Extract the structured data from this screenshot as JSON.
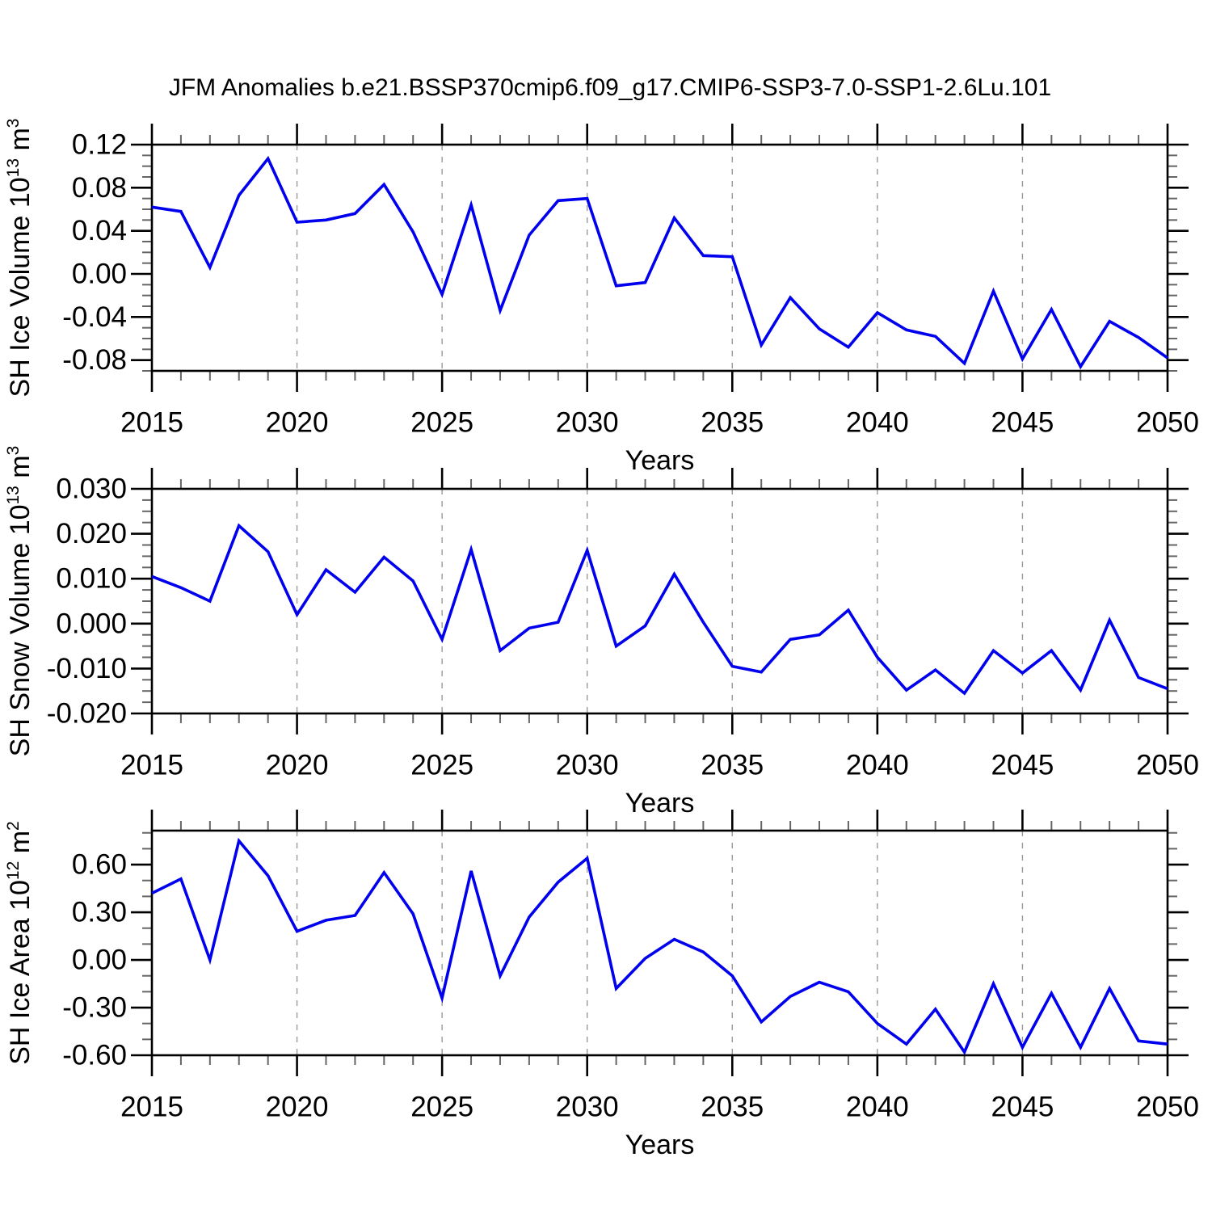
{
  "title": "JFM Anomalies b.e21.BSSP370cmip6.f09_g17.CMIP6-SSP3-7.0-SSP1-2.6Lu.101",
  "colors": {
    "line": "#0000EE",
    "axis": "#000000",
    "minor_tick": "#666666",
    "gridline": "#999999",
    "background": "#FFFFFF",
    "text": "#000000"
  },
  "chart_data": [
    {
      "id": "sh-ice-volume",
      "type": "line",
      "xlabel": "Years",
      "ylabel_segments": [
        {
          "t": "SH Ice Volume 10",
          "sup": false
        },
        {
          "t": "13",
          "sup": true
        },
        {
          "t": " m",
          "sup": false
        },
        {
          "t": "3",
          "sup": true
        }
      ],
      "x": [
        2015,
        2016,
        2017,
        2018,
        2019,
        2020,
        2021,
        2022,
        2023,
        2024,
        2025,
        2026,
        2027,
        2028,
        2029,
        2030,
        2031,
        2032,
        2033,
        2034,
        2035,
        2036,
        2037,
        2038,
        2039,
        2040,
        2041,
        2042,
        2043,
        2044,
        2045,
        2046,
        2047,
        2048,
        2049,
        2050
      ],
      "values": [
        0.062,
        0.058,
        0.006,
        0.073,
        0.107,
        0.048,
        0.05,
        0.056,
        0.083,
        0.039,
        -0.019,
        0.064,
        -0.034,
        0.036,
        0.068,
        0.07,
        -0.011,
        -0.008,
        0.052,
        0.017,
        0.016,
        -0.066,
        -0.022,
        -0.051,
        -0.068,
        -0.036,
        -0.052,
        -0.058,
        -0.083,
        -0.016,
        -0.079,
        -0.033,
        -0.086,
        -0.044,
        -0.059,
        -0.078
      ],
      "ylim": [
        -0.09,
        0.12
      ],
      "yticks": [
        {
          "v": 0.12,
          "label": "0.12"
        },
        {
          "v": 0.08,
          "label": "0.08"
        },
        {
          "v": 0.04,
          "label": "0.04"
        },
        {
          "v": 0.0,
          "label": "0.00"
        },
        {
          "v": -0.04,
          "label": "-0.04"
        },
        {
          "v": -0.08,
          "label": "-0.08"
        }
      ],
      "yminor_step": 0.01,
      "xticks": [
        2015,
        2020,
        2025,
        2030,
        2035,
        2040,
        2045,
        2050
      ],
      "xminor_step": 1,
      "grid_years": [
        2020,
        2025,
        2030,
        2035,
        2040,
        2045
      ]
    },
    {
      "id": "sh-snow-volume",
      "type": "line",
      "xlabel": "Years",
      "ylabel_segments": [
        {
          "t": "SH Snow Volume 10",
          "sup": false
        },
        {
          "t": "13",
          "sup": true
        },
        {
          "t": " m",
          "sup": false
        },
        {
          "t": "3",
          "sup": true
        }
      ],
      "x": [
        2015,
        2016,
        2017,
        2018,
        2019,
        2020,
        2021,
        2022,
        2023,
        2024,
        2025,
        2026,
        2027,
        2028,
        2029,
        2030,
        2031,
        2032,
        2033,
        2034,
        2035,
        2036,
        2037,
        2038,
        2039,
        2040,
        2041,
        2042,
        2043,
        2044,
        2045,
        2046,
        2047,
        2048,
        2049,
        2050
      ],
      "values": [
        0.0105,
        0.008,
        0.005,
        0.0218,
        0.016,
        0.002,
        0.012,
        0.007,
        0.0148,
        0.0095,
        -0.0035,
        0.0165,
        -0.006,
        -0.001,
        0.0003,
        0.0163,
        -0.005,
        -0.0005,
        0.011,
        0.0003,
        -0.0095,
        -0.0108,
        -0.0035,
        -0.0025,
        0.003,
        -0.0075,
        -0.0148,
        -0.0103,
        -0.0155,
        -0.006,
        -0.011,
        -0.006,
        -0.0148,
        0.0008,
        -0.012,
        -0.0145
      ],
      "ylim": [
        -0.02,
        0.03
      ],
      "yticks": [
        {
          "v": 0.03,
          "label": "0.030"
        },
        {
          "v": 0.02,
          "label": "0.020"
        },
        {
          "v": 0.01,
          "label": "0.010"
        },
        {
          "v": 0.0,
          "label": "0.000"
        },
        {
          "v": -0.01,
          "label": "-0.010"
        },
        {
          "v": -0.02,
          "label": "-0.020"
        }
      ],
      "yminor_step": 0.0025,
      "xticks": [
        2015,
        2020,
        2025,
        2030,
        2035,
        2040,
        2045,
        2050
      ],
      "xminor_step": 1,
      "grid_years": [
        2020,
        2025,
        2030,
        2035,
        2040,
        2045
      ]
    },
    {
      "id": "sh-ice-area",
      "type": "line",
      "xlabel": "Years",
      "ylabel_segments": [
        {
          "t": "SH Ice Area 10",
          "sup": false
        },
        {
          "t": "12",
          "sup": true
        },
        {
          "t": " m",
          "sup": false
        },
        {
          "t": "2",
          "sup": true
        }
      ],
      "x": [
        2015,
        2016,
        2017,
        2018,
        2019,
        2020,
        2021,
        2022,
        2023,
        2024,
        2025,
        2026,
        2027,
        2028,
        2029,
        2030,
        2031,
        2032,
        2033,
        2034,
        2035,
        2036,
        2037,
        2038,
        2039,
        2040,
        2041,
        2042,
        2043,
        2044,
        2045,
        2046,
        2047,
        2048,
        2049,
        2050
      ],
      "values": [
        0.42,
        0.51,
        0.0,
        0.75,
        0.53,
        0.18,
        0.25,
        0.28,
        0.55,
        0.29,
        -0.24,
        0.56,
        -0.1,
        0.27,
        0.49,
        0.64,
        -0.18,
        0.01,
        0.13,
        0.05,
        -0.1,
        -0.39,
        -0.23,
        -0.14,
        -0.2,
        -0.4,
        -0.53,
        -0.31,
        -0.58,
        -0.15,
        -0.55,
        -0.21,
        -0.55,
        -0.18,
        -0.51,
        -0.53
      ],
      "ylim": [
        -0.6,
        0.814
      ],
      "yticks": [
        {
          "v": 0.6,
          "label": "0.60"
        },
        {
          "v": 0.3,
          "label": "0.30"
        },
        {
          "v": 0.0,
          "label": "0.00"
        },
        {
          "v": -0.3,
          "label": "-0.30"
        },
        {
          "v": -0.6,
          "label": "-0.60"
        }
      ],
      "yminor_step": 0.1,
      "xticks": [
        2015,
        2020,
        2025,
        2030,
        2035,
        2040,
        2045,
        2050
      ],
      "xminor_step": 1,
      "grid_years": [
        2020,
        2025,
        2030,
        2035,
        2040,
        2045
      ]
    }
  ]
}
